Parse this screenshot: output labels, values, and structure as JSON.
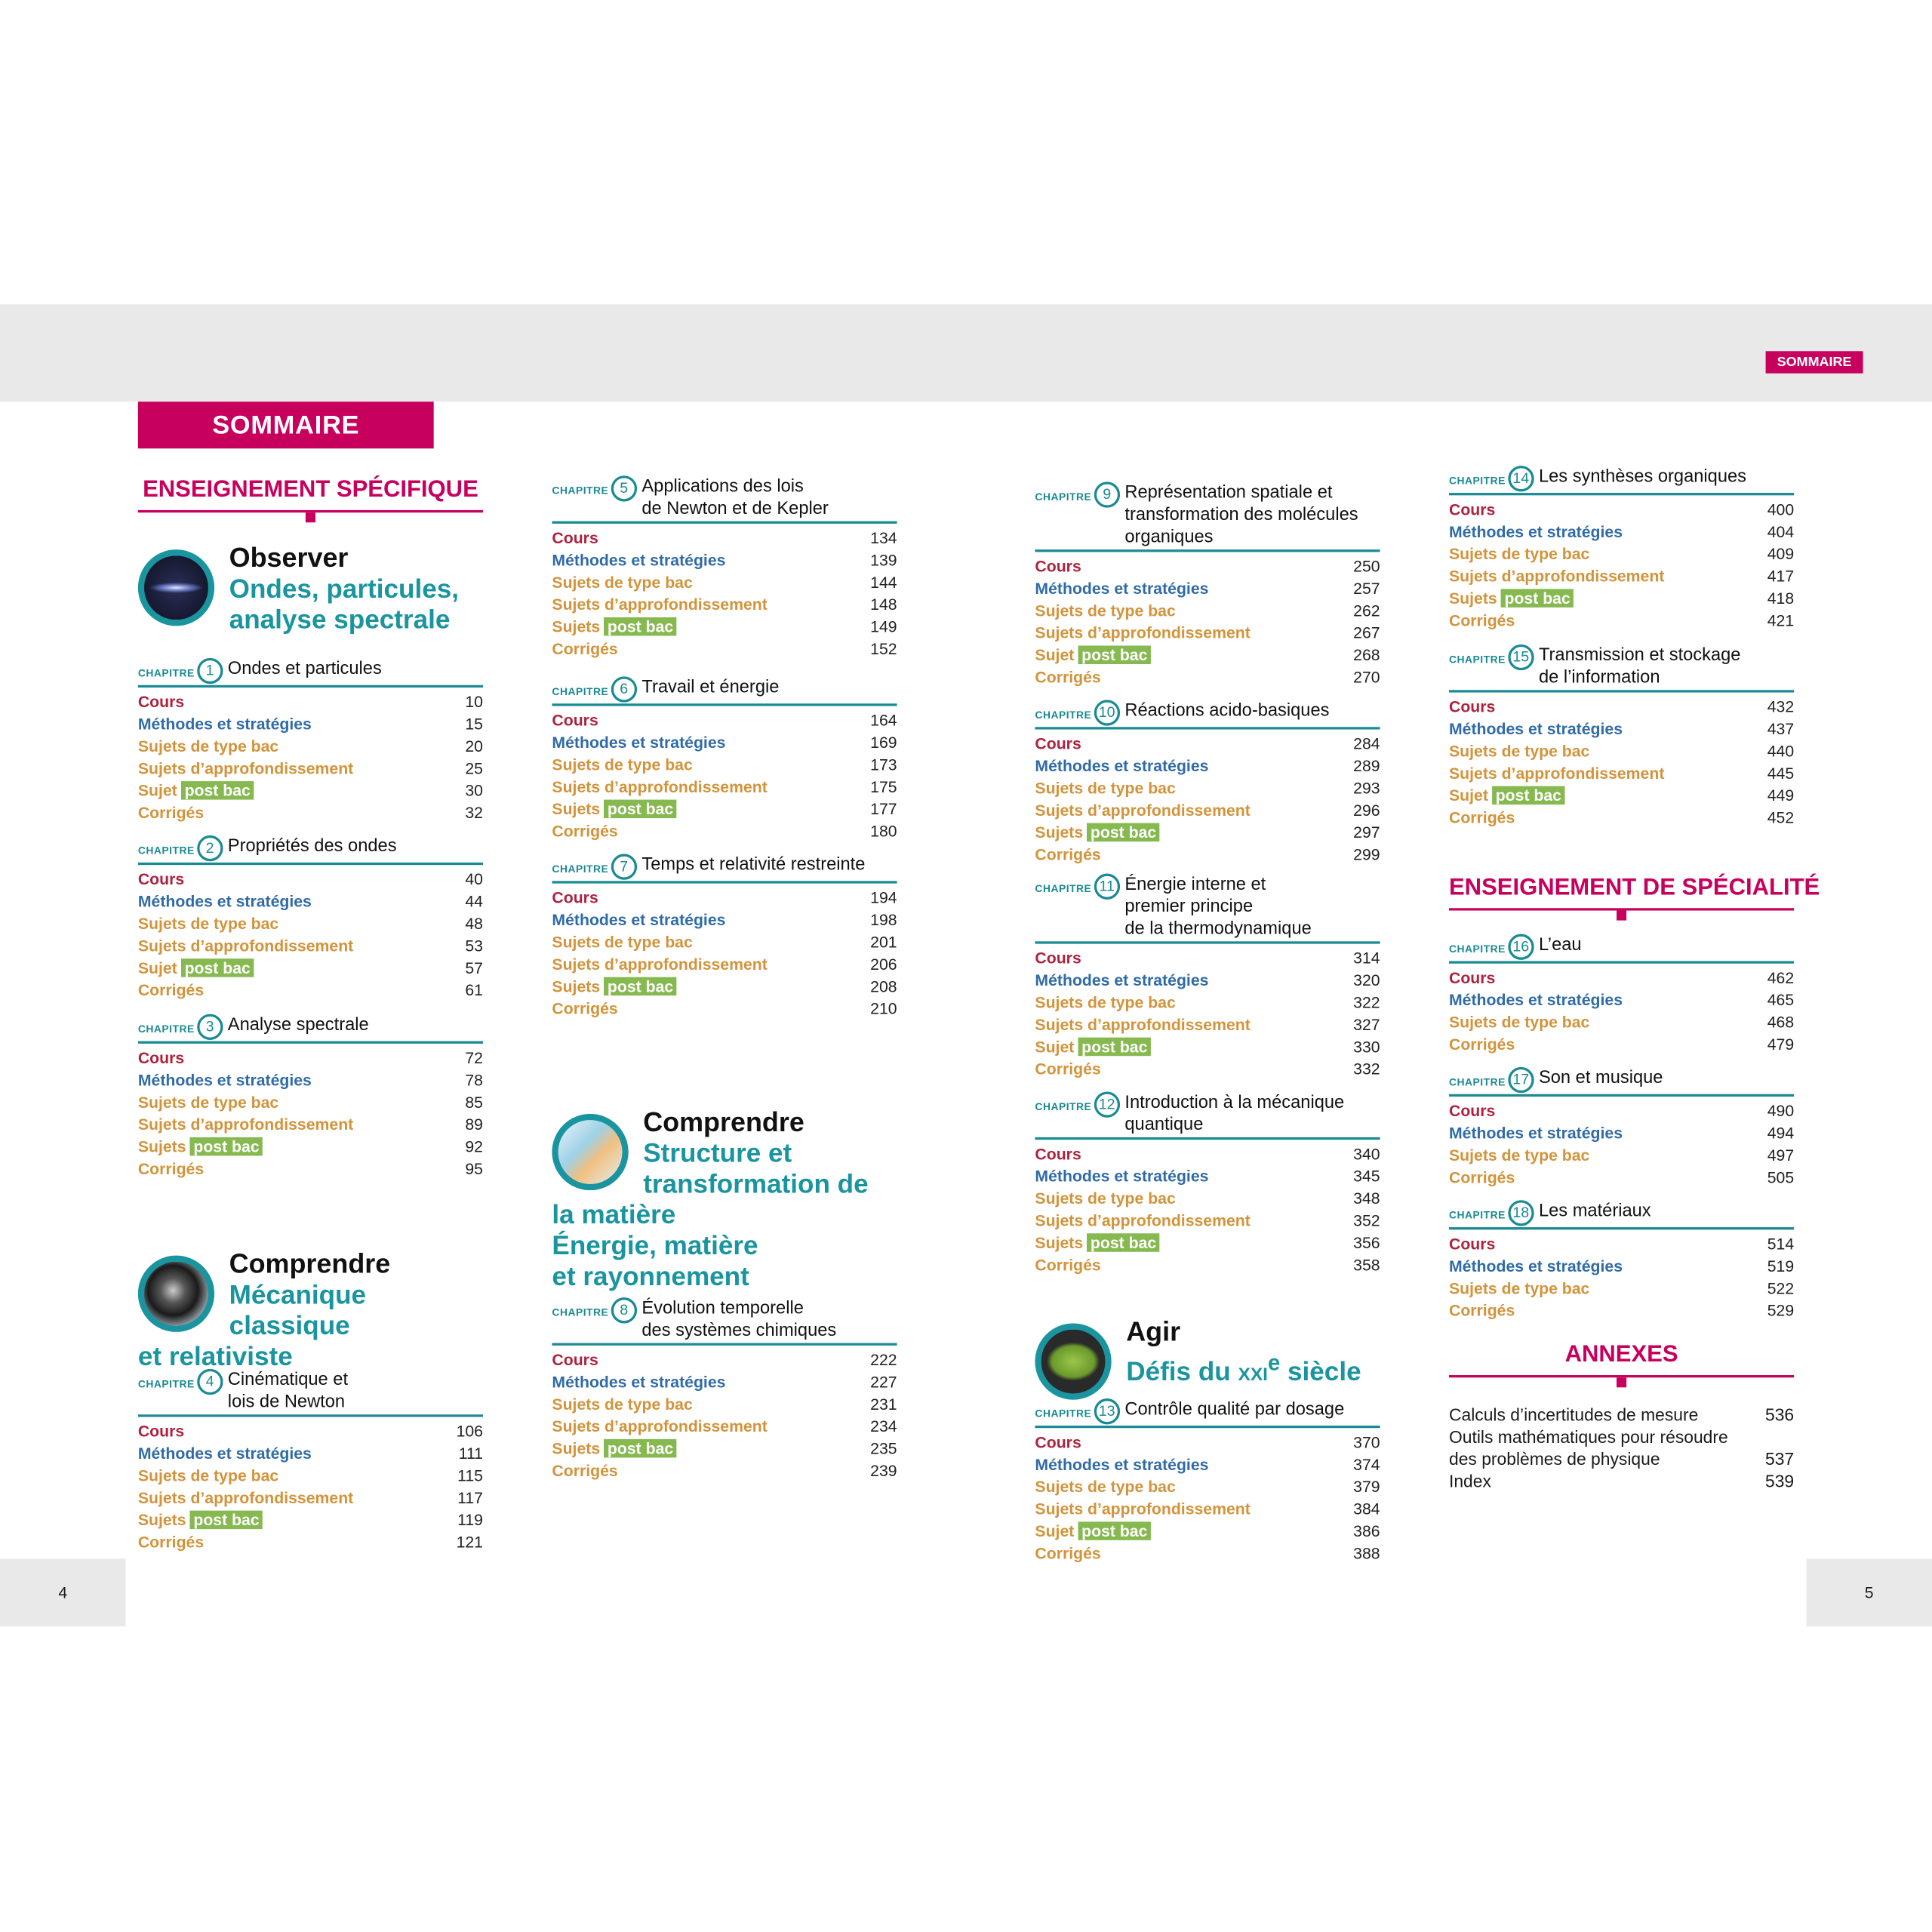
{
  "header": {
    "section_badge": "SOMMAIRE",
    "title": "SOMMAIRE"
  },
  "pages": {
    "left": "4",
    "right": "5"
  },
  "colors": {
    "magenta": "#c7005e",
    "teal": "#1a95a0",
    "cours": "#a8102e",
    "methodes": "#1f5fa0",
    "sujets": "#d08a2a",
    "post_bac": "#7cb342"
  },
  "chapter_label": "CHAPITRE",
  "post_bac_label": "post bac",
  "columns": [
    [
      {
        "type": "heading",
        "text": "ENSEIGNEMENT SPÉCIFIQUE"
      },
      {
        "type": "theme",
        "icon": "waves-icon",
        "title": "Observer",
        "subtitle": [
          "Ondes, particules,",
          "analyse spectrale"
        ]
      },
      {
        "type": "chapter",
        "num": "1",
        "title": [
          "Ondes et particules"
        ],
        "items": [
          [
            "Cours",
            "10",
            "cours"
          ],
          [
            "Méthodes et stratégies",
            "15",
            "meth"
          ],
          [
            "Sujets de type bac",
            "20",
            "suj"
          ],
          [
            "Sujets d’approfondissement",
            "25",
            "suj"
          ],
          [
            "Sujet",
            "30",
            "pb"
          ],
          [
            "Corrigés",
            "32",
            "suj"
          ]
        ]
      },
      {
        "type": "chapter",
        "num": "2",
        "title": [
          "Propriétés des ondes"
        ],
        "items": [
          [
            "Cours",
            "40",
            "cours"
          ],
          [
            "Méthodes et stratégies",
            "44",
            "meth"
          ],
          [
            "Sujets de type bac",
            "48",
            "suj"
          ],
          [
            "Sujets d’approfondissement",
            "53",
            "suj"
          ],
          [
            "Sujet",
            "57",
            "pb"
          ],
          [
            "Corrigés",
            "61",
            "suj"
          ]
        ]
      },
      {
        "type": "chapter",
        "num": "3",
        "title": [
          "Analyse spectrale"
        ],
        "items": [
          [
            "Cours",
            "72",
            "cours"
          ],
          [
            "Méthodes et stratégies",
            "78",
            "meth"
          ],
          [
            "Sujets de type bac",
            "85",
            "suj"
          ],
          [
            "Sujets d’approfondissement",
            "89",
            "suj"
          ],
          [
            "Sujets",
            "92",
            "pb"
          ],
          [
            "Corrigés",
            "95",
            "suj"
          ]
        ]
      },
      {
        "type": "theme",
        "icon": "telescope-icon",
        "title": "Comprendre",
        "subtitle": [
          "Mécanique classique",
          "et relativiste"
        ]
      },
      {
        "type": "chapter",
        "num": "4",
        "title": [
          "Cinématique et",
          "lois de Newton"
        ],
        "items": [
          [
            "Cours",
            "106",
            "cours"
          ],
          [
            "Méthodes et stratégies",
            "111",
            "meth"
          ],
          [
            "Sujets de type bac",
            "115",
            "suj"
          ],
          [
            "Sujets d’approfondissement",
            "117",
            "suj"
          ],
          [
            "Sujets",
            "119",
            "pb"
          ],
          [
            "Corrigés",
            "121",
            "suj"
          ]
        ]
      }
    ],
    [
      {
        "type": "chapter",
        "num": "5",
        "title": [
          "Applications des lois",
          "de Newton et de Kepler"
        ],
        "items": [
          [
            "Cours",
            "134",
            "cours"
          ],
          [
            "Méthodes et stratégies",
            "139",
            "meth"
          ],
          [
            "Sujets de type bac",
            "144",
            "suj"
          ],
          [
            "Sujets d’approfondissement",
            "148",
            "suj"
          ],
          [
            "Sujets",
            "149",
            "pb"
          ],
          [
            "Corrigés",
            "152",
            "suj"
          ]
        ]
      },
      {
        "type": "chapter",
        "num": "6",
        "title": [
          "Travail et énergie"
        ],
        "items": [
          [
            "Cours",
            "164",
            "cours"
          ],
          [
            "Méthodes et stratégies",
            "169",
            "meth"
          ],
          [
            "Sujets de type bac",
            "173",
            "suj"
          ],
          [
            "Sujets d’approfondissement",
            "175",
            "suj"
          ],
          [
            "Sujets",
            "177",
            "pb"
          ],
          [
            "Corrigés",
            "180",
            "suj"
          ]
        ]
      },
      {
        "type": "chapter",
        "num": "7",
        "title": [
          "Temps et relativité restreinte"
        ],
        "items": [
          [
            "Cours",
            "194",
            "cours"
          ],
          [
            "Méthodes et stratégies",
            "198",
            "meth"
          ],
          [
            "Sujets de type bac",
            "201",
            "suj"
          ],
          [
            "Sujets d’approfondissement",
            "206",
            "suj"
          ],
          [
            "Sujets",
            "208",
            "pb"
          ],
          [
            "Corrigés",
            "210",
            "suj"
          ]
        ]
      },
      {
        "type": "theme",
        "icon": "lab-glassware-icon",
        "title": "Comprendre",
        "subtitle": [
          "Structure et",
          "transformation de la matière",
          "Énergie, matière",
          "et rayonnement"
        ]
      },
      {
        "type": "chapter",
        "num": "8",
        "title": [
          "Évolution temporelle",
          "des systèmes chimiques"
        ],
        "items": [
          [
            "Cours",
            "222",
            "cours"
          ],
          [
            "Méthodes et stratégies",
            "227",
            "meth"
          ],
          [
            "Sujets de type bac",
            "231",
            "suj"
          ],
          [
            "Sujets d’approfondissement",
            "234",
            "suj"
          ],
          [
            "Sujets",
            "235",
            "pb"
          ],
          [
            "Corrigés",
            "239",
            "suj"
          ]
        ]
      }
    ],
    [
      {
        "type": "chapter",
        "num": "9",
        "title": [
          "Représentation spatiale et",
          "transformation des molécules",
          "organiques"
        ],
        "items": [
          [
            "Cours",
            "250",
            "cours"
          ],
          [
            "Méthodes et stratégies",
            "257",
            "meth"
          ],
          [
            "Sujets de type bac",
            "262",
            "suj"
          ],
          [
            "Sujets d’approfondissement",
            "267",
            "suj"
          ],
          [
            "Sujet",
            "268",
            "pb"
          ],
          [
            "Corrigés",
            "270",
            "suj"
          ]
        ]
      },
      {
        "type": "chapter",
        "num": "10",
        "title": [
          "Réactions acido-basiques"
        ],
        "items": [
          [
            "Cours",
            "284",
            "cours"
          ],
          [
            "Méthodes et stratégies",
            "289",
            "meth"
          ],
          [
            "Sujets de type bac",
            "293",
            "suj"
          ],
          [
            "Sujets d’approfondissement",
            "296",
            "suj"
          ],
          [
            "Sujets",
            "297",
            "pb"
          ],
          [
            "Corrigés",
            "299",
            "suj"
          ]
        ]
      },
      {
        "type": "chapter",
        "num": "11",
        "title": [
          "Énergie interne et",
          "premier principe",
          "de la thermodynamique"
        ],
        "items": [
          [
            "Cours",
            "314",
            "cours"
          ],
          [
            "Méthodes et stratégies",
            "320",
            "meth"
          ],
          [
            "Sujets de type bac",
            "322",
            "suj"
          ],
          [
            "Sujets d’approfondissement",
            "327",
            "suj"
          ],
          [
            "Sujet",
            "330",
            "pb"
          ],
          [
            "Corrigés",
            "332",
            "suj"
          ]
        ]
      },
      {
        "type": "chapter",
        "num": "12",
        "title": [
          "Introduction à la mécanique",
          "quantique"
        ],
        "items": [
          [
            "Cours",
            "340",
            "cours"
          ],
          [
            "Méthodes et stratégies",
            "345",
            "meth"
          ],
          [
            "Sujets de type bac",
            "348",
            "suj"
          ],
          [
            "Sujets d’approfondissement",
            "352",
            "suj"
          ],
          [
            "Sujets",
            "356",
            "pb"
          ],
          [
            "Corrigés",
            "358",
            "suj"
          ]
        ]
      },
      {
        "type": "theme",
        "icon": "leaf-icon",
        "title": "Agir",
        "subtitle_parts": {
          "pre": "Défis du ",
          "sc": "xxi",
          "sup": "e",
          "post": " siècle"
        }
      },
      {
        "type": "chapter",
        "num": "13",
        "title": [
          "Contrôle qualité par dosage"
        ],
        "items": [
          [
            "Cours",
            "370",
            "cours"
          ],
          [
            "Méthodes et stratégies",
            "374",
            "meth"
          ],
          [
            "Sujets de type bac",
            "379",
            "suj"
          ],
          [
            "Sujets d’approfondissement",
            "384",
            "suj"
          ],
          [
            "Sujet",
            "386",
            "pb"
          ],
          [
            "Corrigés",
            "388",
            "suj"
          ]
        ]
      }
    ],
    [
      {
        "type": "chapter",
        "num": "14",
        "title": [
          "Les synthèses organiques"
        ],
        "items": [
          [
            "Cours",
            "400",
            "cours"
          ],
          [
            "Méthodes et stratégies",
            "404",
            "meth"
          ],
          [
            "Sujets de type bac",
            "409",
            "suj"
          ],
          [
            "Sujets d’approfondissement",
            "417",
            "suj"
          ],
          [
            "Sujets",
            "418",
            "pb"
          ],
          [
            "Corrigés",
            "421",
            "suj"
          ]
        ]
      },
      {
        "type": "chapter",
        "num": "15",
        "title": [
          "Transmission et stockage",
          "de l’information"
        ],
        "items": [
          [
            "Cours",
            "432",
            "cours"
          ],
          [
            "Méthodes et stratégies",
            "437",
            "meth"
          ],
          [
            "Sujets de type bac",
            "440",
            "suj"
          ],
          [
            "Sujets d’approfondissement",
            "445",
            "suj"
          ],
          [
            "Sujet",
            "449",
            "pb"
          ],
          [
            "Corrigés",
            "452",
            "suj"
          ]
        ]
      },
      {
        "type": "heading",
        "text": "ENSEIGNEMENT DE SPÉCIALITÉ"
      },
      {
        "type": "chapter",
        "num": "16",
        "title": [
          "L’eau"
        ],
        "items": [
          [
            "Cours",
            "462",
            "cours"
          ],
          [
            "Méthodes et stratégies",
            "465",
            "meth"
          ],
          [
            "Sujets de type bac",
            "468",
            "suj"
          ],
          [
            "Corrigés",
            "479",
            "suj"
          ]
        ]
      },
      {
        "type": "chapter",
        "num": "17",
        "title": [
          "Son et musique"
        ],
        "items": [
          [
            "Cours",
            "490",
            "cours"
          ],
          [
            "Méthodes et stratégies",
            "494",
            "meth"
          ],
          [
            "Sujets de type bac",
            "497",
            "suj"
          ],
          [
            "Corrigés",
            "505",
            "suj"
          ]
        ]
      },
      {
        "type": "chapter",
        "num": "18",
        "title": [
          "Les matériaux"
        ],
        "items": [
          [
            "Cours",
            "514",
            "cours"
          ],
          [
            "Méthodes et stratégies",
            "519",
            "meth"
          ],
          [
            "Sujets de type bac",
            "522",
            "suj"
          ],
          [
            "Corrigés",
            "529",
            "suj"
          ]
        ]
      },
      {
        "type": "heading",
        "text": "ANNEXES"
      },
      {
        "type": "annex",
        "items": [
          {
            "lines": [
              "Calculs d’incertitudes de mesure"
            ],
            "page": "536"
          },
          {
            "lines": [
              "Outils mathématiques pour résoudre",
              "des problèmes de physique"
            ],
            "page": "537"
          },
          {
            "lines": [
              "Index"
            ],
            "page": "539"
          }
        ]
      }
    ]
  ]
}
